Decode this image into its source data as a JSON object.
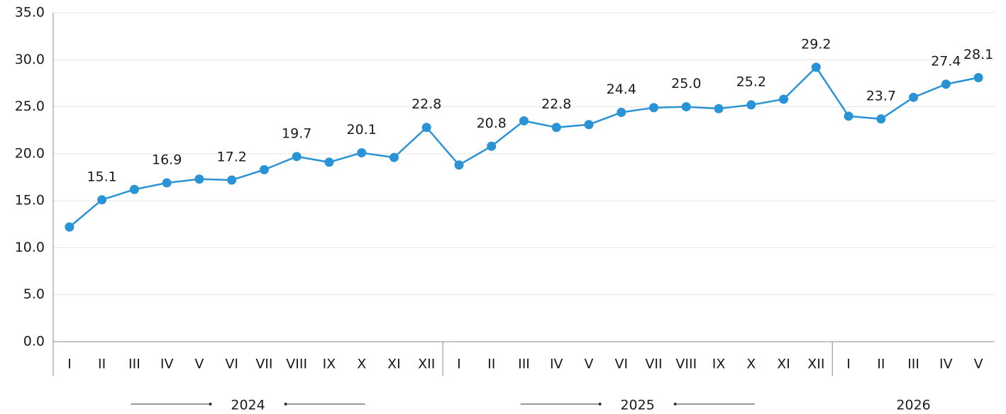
{
  "chart_data": {
    "type": "line",
    "groups": [
      {
        "name": "2024",
        "categories": [
          "I",
          "II",
          "III",
          "IV",
          "V",
          "VI",
          "VII",
          "VIII",
          "IX",
          "X",
          "XI",
          "XII"
        ]
      },
      {
        "name": "2025",
        "categories": [
          "I",
          "II",
          "III",
          "IV",
          "V",
          "VI",
          "VII",
          "VIII",
          "IX",
          "X",
          "XI",
          "XII"
        ]
      },
      {
        "name": "2026",
        "categories": [
          "I",
          "II",
          "III",
          "IV",
          "V"
        ]
      }
    ],
    "values": [
      12.2,
      15.1,
      16.2,
      16.9,
      17.3,
      17.2,
      18.3,
      19.7,
      19.1,
      20.1,
      19.6,
      22.8,
      18.8,
      20.8,
      23.5,
      22.8,
      23.1,
      24.4,
      24.9,
      25.0,
      24.8,
      25.2,
      25.8,
      29.2,
      24.0,
      23.7,
      26.0,
      27.4,
      28.1
    ],
    "value_labels": [
      null,
      "15.1",
      null,
      "16.9",
      null,
      "17.2",
      null,
      "19.7",
      null,
      "20.1",
      null,
      "22.8",
      null,
      "20.8",
      null,
      "22.8",
      null,
      "24.4",
      null,
      "25.0",
      null,
      "25.2",
      null,
      "29.2",
      null,
      "23.7",
      null,
      "27.4",
      "28.1"
    ],
    "color": "#2a93d5",
    "ylim": [
      0,
      35
    ],
    "yticks": [
      {
        "value": 0,
        "label": "0.0"
      },
      {
        "value": 5,
        "label": "5.0"
      },
      {
        "value": 10,
        "label": "10.0"
      },
      {
        "value": 15,
        "label": "15.0"
      },
      {
        "value": 20,
        "label": "20.0"
      },
      {
        "value": 25,
        "label": "25.0"
      },
      {
        "value": 30,
        "label": "30.0"
      },
      {
        "value": 35,
        "label": "35.0"
      }
    ],
    "grid": true
  }
}
